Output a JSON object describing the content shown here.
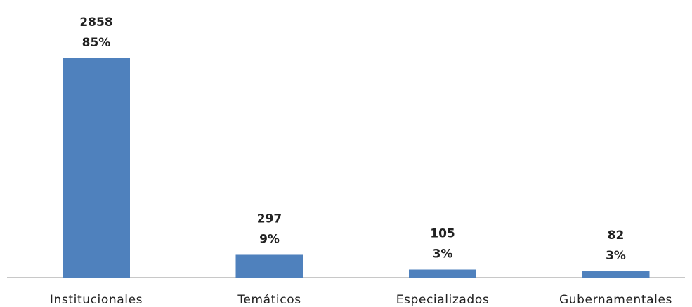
{
  "chart_data": {
    "type": "bar",
    "categories": [
      "Institucionales",
      "Temáticos",
      "Especializados",
      "Gubernamentales"
    ],
    "values": [
      2858,
      297,
      105,
      82
    ],
    "percent_labels": [
      "85%",
      "9%",
      "3%",
      "3%"
    ],
    "colors": {
      "bar": "#4f81bd",
      "axis": "#a6a6a6",
      "text": "#222222"
    },
    "grid": false,
    "legend": "none"
  }
}
